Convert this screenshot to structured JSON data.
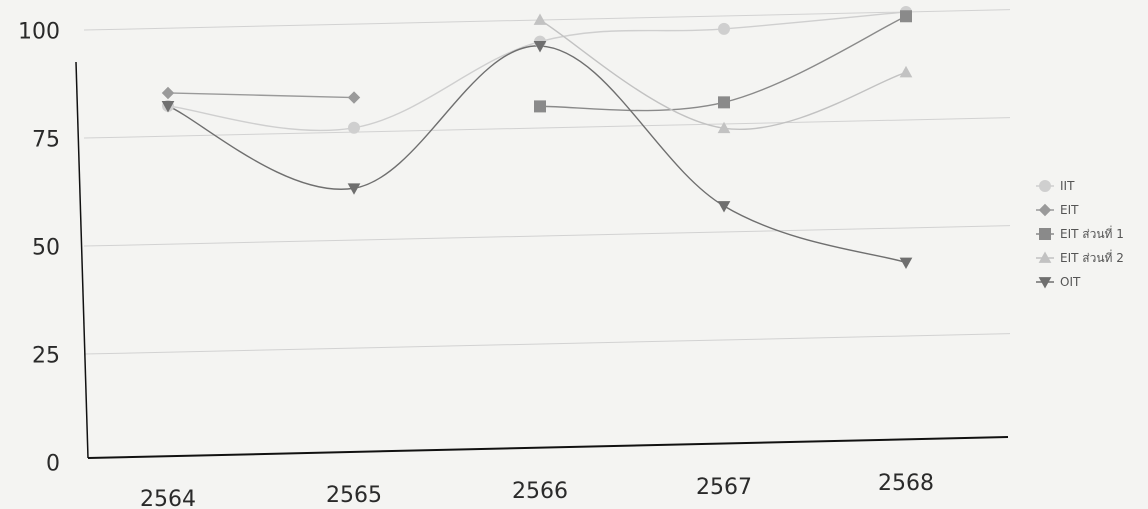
{
  "chart_data": {
    "type": "line",
    "title": "",
    "xlabel": "",
    "ylabel": "",
    "categories": [
      "2564",
      "2565",
      "2566",
      "2567",
      "2568"
    ],
    "ylim": [
      0,
      100
    ],
    "yticks": [
      "0",
      "25",
      "50",
      "75",
      "100"
    ],
    "grid": true,
    "smooth": true,
    "legend_position": "right",
    "series": [
      {
        "name": "IIT",
        "marker": "circle",
        "color": "#cfcfcf",
        "values": [
          82,
          76,
          95,
          97,
          100
        ]
      },
      {
        "name": "EIT",
        "marker": "diamond",
        "color": "#9a9a9a",
        "values": [
          85,
          83,
          null,
          null,
          null
        ]
      },
      {
        "name": "EIT ส่วนที่ 1",
        "marker": "square",
        "color": "#8a8a8a",
        "values": [
          null,
          null,
          80,
          80,
          99
        ]
      },
      {
        "name": "EIT ส่วนที่ 2",
        "marker": "triangle-up",
        "color": "#c2c2c2",
        "values": [
          null,
          null,
          100,
          74,
          86
        ]
      },
      {
        "name": "OIT",
        "marker": "triangle-down",
        "color": "#6f6f6f",
        "values": [
          82,
          62,
          94,
          56,
          42
        ]
      }
    ]
  }
}
